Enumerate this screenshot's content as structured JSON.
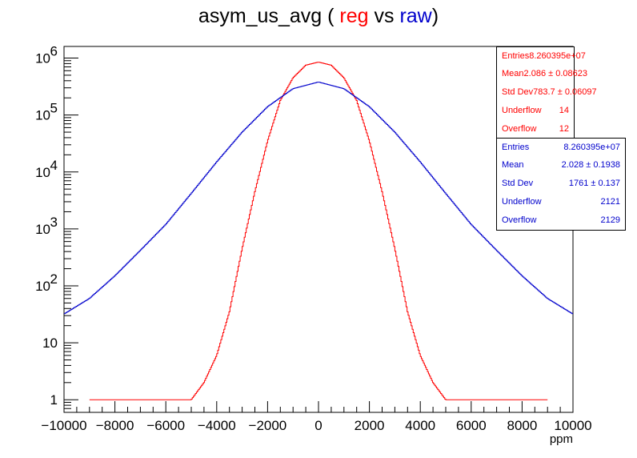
{
  "title": {
    "prefix": "asym_us_avg ( ",
    "reg": "reg",
    "middle": " vs ",
    "raw": "raw",
    "suffix": ")"
  },
  "colors": {
    "reg": "#ff0000",
    "raw": "#0000cc",
    "axis": "#000000"
  },
  "chart_data": {
    "type": "line",
    "title": "asym_us_avg ( reg vs raw)",
    "xlabel": "ppm",
    "ylabel": "",
    "xlim": [
      -10000,
      10000
    ],
    "ylim": [
      0.6,
      1600000
    ],
    "yscale": "log",
    "grid": false,
    "legend": "top-right stat boxes",
    "x_ticks": [
      -10000,
      -8000,
      -6000,
      -4000,
      -2000,
      0,
      2000,
      4000,
      6000,
      8000,
      10000
    ],
    "x_tick_labels": [
      "−10000",
      "−8000",
      "−6000",
      "−4000",
      "−2000",
      "0",
      "2000",
      "4000",
      "6000",
      "8000",
      "10000"
    ],
    "y_ticks": [
      1,
      10,
      100,
      1000,
      10000,
      100000,
      1000000
    ],
    "y_tick_labels": [
      {
        "base": "1",
        "exp": ""
      },
      {
        "base": "10",
        "exp": ""
      },
      {
        "base": "10",
        "exp": "2"
      },
      {
        "base": "10",
        "exp": "3"
      },
      {
        "base": "10",
        "exp": "4"
      },
      {
        "base": "10",
        "exp": "5"
      },
      {
        "base": "10",
        "exp": "6"
      }
    ],
    "series": [
      {
        "name": "reg",
        "color": "#ff0000",
        "x": [
          -9000,
          -8000,
          -7000,
          -6000,
          -5000,
          -4500,
          -4000,
          -3500,
          -3000,
          -2500,
          -2000,
          -1500,
          -1000,
          -500,
          0,
          500,
          1000,
          1500,
          2000,
          2500,
          3000,
          3500,
          4000,
          4500,
          5000,
          6000,
          7000,
          8000,
          9000
        ],
        "y": [
          1,
          1,
          1,
          1,
          1,
          2,
          6,
          35,
          450,
          4500,
          35000,
          180000,
          450000,
          750000,
          850000,
          750000,
          450000,
          180000,
          35000,
          4500,
          450,
          35,
          6,
          2,
          1,
          1,
          1,
          1,
          1
        ]
      },
      {
        "name": "raw",
        "color": "#0000cc",
        "x": [
          -10000,
          -9000,
          -8000,
          -7000,
          -6000,
          -5000,
          -4000,
          -3000,
          -2000,
          -1000,
          0,
          1000,
          2000,
          3000,
          4000,
          5000,
          6000,
          7000,
          8000,
          9000,
          10000
        ],
        "y": [
          32,
          60,
          150,
          420,
          1200,
          4200,
          15000,
          50000,
          140000,
          290000,
          380000,
          290000,
          140000,
          50000,
          15000,
          4200,
          1200,
          420,
          150,
          60,
          32
        ]
      }
    ]
  },
  "stats": [
    {
      "color": "#ff0000",
      "rows": [
        {
          "label": "Entries",
          "value": "8.260395e+07"
        },
        {
          "label": "Mean",
          "value": "2.086 ± 0.08623"
        },
        {
          "label": "Std Dev",
          "value": "783.7 ± 0.06097"
        },
        {
          "label": "Underflow",
          "value": "14"
        },
        {
          "label": "Overflow",
          "value": "12"
        }
      ]
    },
    {
      "color": "#0000cc",
      "rows": [
        {
          "label": "Entries",
          "value": "8.260395e+07"
        },
        {
          "label": "Mean",
          "value": "2.028 ± 0.1938"
        },
        {
          "label": "Std Dev",
          "value": "1761 ±  0.137"
        },
        {
          "label": "Underflow",
          "value": "2121"
        },
        {
          "label": "Overflow",
          "value": "2129"
        }
      ]
    }
  ]
}
